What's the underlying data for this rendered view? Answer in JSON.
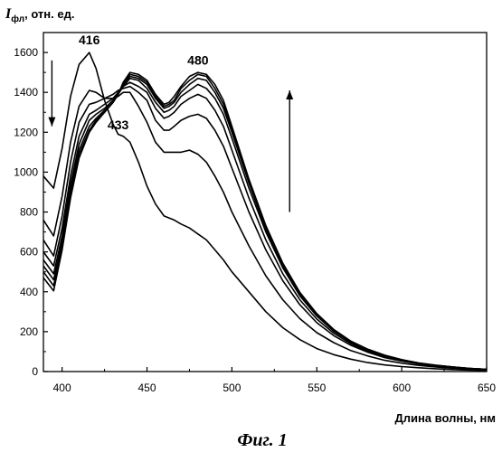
{
  "chart_data": {
    "type": "line",
    "ylabel": {
      "symbol": "I",
      "subscript": "фл",
      "rest": ", отн. ед."
    },
    "xlabel": "Длина волны, нм",
    "xlim": [
      389,
      650
    ],
    "ylim": [
      0,
      1700
    ],
    "xticks": [
      400,
      450,
      500,
      550,
      600,
      650
    ],
    "yticks": [
      0,
      200,
      400,
      600,
      800,
      1000,
      1200,
      1400,
      1600
    ],
    "grid": false,
    "legend": "none",
    "annotations": [
      {
        "text": "416",
        "x": 416,
        "y": 1640
      },
      {
        "text": "433",
        "x": 433,
        "y": 1215
      },
      {
        "text": "480",
        "x": 480,
        "y": 1540
      }
    ],
    "arrows": [
      {
        "direction": "down",
        "x": 394,
        "y_from": 1560,
        "y_to": 1230
      },
      {
        "direction": "up",
        "x": 534,
        "y_from": 800,
        "y_to": 1410
      }
    ],
    "caption": "Фиг. 1",
    "x": [
      389,
      395,
      400,
      405,
      410,
      416,
      420,
      425,
      430,
      433,
      436,
      440,
      445,
      450,
      455,
      460,
      463,
      466,
      470,
      475,
      480,
      485,
      490,
      495,
      500,
      510,
      520,
      530,
      540,
      550,
      560,
      570,
      580,
      590,
      600,
      610,
      620,
      630,
      640,
      650
    ],
    "series": [
      {
        "values": [
          980,
          920,
          1120,
          1380,
          1540,
          1600,
          1520,
          1360,
          1240,
          1190,
          1180,
          1150,
          1050,
          930,
          840,
          780,
          770,
          760,
          740,
          720,
          690,
          660,
          610,
          560,
          500,
          400,
          300,
          220,
          160,
          115,
          85,
          62,
          45,
          33,
          25,
          19,
          14,
          10,
          7,
          5
        ]
      },
      {
        "values": [
          760,
          680,
          880,
          1150,
          1330,
          1410,
          1400,
          1370,
          1370,
          1380,
          1400,
          1400,
          1330,
          1250,
          1150,
          1100,
          1100,
          1100,
          1100,
          1110,
          1090,
          1050,
          980,
          900,
          800,
          630,
          480,
          360,
          265,
          195,
          145,
          105,
          78,
          56,
          42,
          31,
          23,
          17,
          12,
          8
        ]
      },
      {
        "values": [
          660,
          580,
          780,
          1050,
          1250,
          1340,
          1350,
          1370,
          1390,
          1410,
          1420,
          1430,
          1400,
          1360,
          1260,
          1210,
          1210,
          1230,
          1260,
          1280,
          1290,
          1270,
          1210,
          1130,
          1020,
          800,
          610,
          455,
          335,
          245,
          180,
          132,
          97,
          70,
          52,
          38,
          28,
          20,
          14,
          10
        ]
      },
      {
        "values": [
          600,
          530,
          720,
          980,
          1180,
          1290,
          1310,
          1340,
          1370,
          1400,
          1430,
          1450,
          1430,
          1400,
          1320,
          1270,
          1280,
          1300,
          1340,
          1370,
          1390,
          1370,
          1310,
          1230,
          1110,
          870,
          660,
          490,
          360,
          263,
          192,
          140,
          103,
          75,
          55,
          40,
          29,
          21,
          15,
          10
        ]
      },
      {
        "values": [
          560,
          490,
          680,
          940,
          1140,
          1260,
          1290,
          1320,
          1360,
          1390,
          1430,
          1470,
          1460,
          1420,
          1350,
          1300,
          1310,
          1330,
          1380,
          1410,
          1440,
          1420,
          1370,
          1290,
          1170,
          920,
          700,
          520,
          380,
          278,
          202,
          147,
          108,
          78,
          57,
          42,
          30,
          22,
          15,
          11
        ]
      },
      {
        "values": [
          530,
          460,
          650,
          910,
          1110,
          1230,
          1270,
          1310,
          1350,
          1390,
          1440,
          1480,
          1470,
          1440,
          1370,
          1320,
          1330,
          1350,
          1400,
          1440,
          1470,
          1460,
          1400,
          1320,
          1200,
          945,
          715,
          530,
          388,
          283,
          206,
          150,
          110,
          80,
          58,
          42,
          31,
          22,
          16,
          11
        ]
      },
      {
        "values": [
          500,
          430,
          630,
          890,
          1090,
          1210,
          1260,
          1300,
          1350,
          1390,
          1440,
          1490,
          1480,
          1450,
          1380,
          1330,
          1340,
          1360,
          1420,
          1460,
          1490,
          1480,
          1420,
          1340,
          1215,
          955,
          725,
          538,
          393,
          287,
          209,
          152,
          111,
          81,
          59,
          43,
          31,
          23,
          16,
          11
        ]
      },
      {
        "values": [
          470,
          405,
          610,
          870,
          1070,
          1200,
          1250,
          1300,
          1350,
          1390,
          1450,
          1500,
          1490,
          1460,
          1390,
          1340,
          1350,
          1380,
          1430,
          1480,
          1500,
          1490,
          1440,
          1360,
          1230,
          965,
          732,
          543,
          397,
          290,
          211,
          153,
          112,
          82,
          60,
          43,
          32,
          23,
          16,
          11
        ]
      }
    ]
  }
}
